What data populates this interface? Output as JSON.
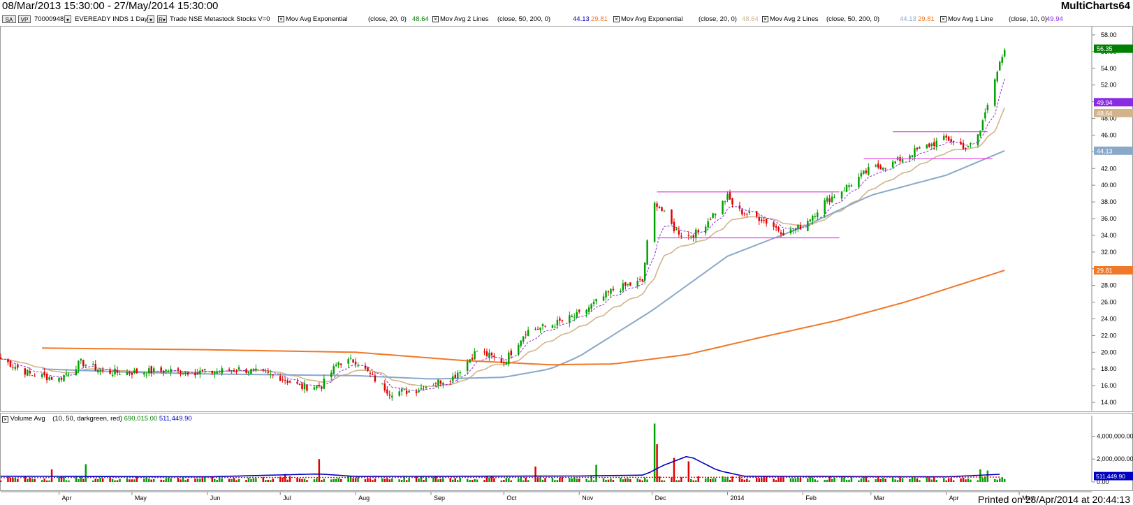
{
  "header": {
    "date_range": "08/Mar/2013 15:30:00 - 27/May/2014 15:30:00",
    "brand": "MultiCharts64"
  },
  "legend": {
    "btn_sa": "SA",
    "btn_vp": "VP",
    "symbol_id": "70000948",
    "symbol_desc": "EVEREADY INDS  1 Day",
    "source": "Trade  NSE  Metastock  Stocks  V=0",
    "ind1_name": "Mov Avg Exponential",
    "ind1_params": "(close,  20,  0)",
    "ind1_value": "48.64",
    "ind2_name": "Mov Avg 2 Lines",
    "ind2_params": "(close,  50,  200,  0)",
    "ind2_value_a": "44.13",
    "ind2_value_b": "29.81",
    "ind3_name": "Mov Avg Exponential",
    "ind3_params": "(close,  20,  0)",
    "ind3_value": "48.64",
    "ind4_name": "Mov Avg 2 Lines",
    "ind4_params": "(close,  50,  200,  0)",
    "ind4_value_a": "44.13",
    "ind4_value_b": "29.81",
    "ind5_name": "Mov Avg 1 Line",
    "ind5_params": "(close,  10,  0)",
    "ind5_value": "49.94"
  },
  "volume_legend": {
    "name": "Volume Avg",
    "params": "(10,  50,  darkgreen,  red)",
    "value_a": "690,015.00",
    "value_b": "511,449.90"
  },
  "footer": {
    "printed": "Printed on 28/Apr/2014 at 20:44:13"
  },
  "colors": {
    "up": "#00a000",
    "down": "#e00000",
    "ema20": "#d2b48c",
    "ma50": "#8aa9c9",
    "ma200": "#f07828",
    "ma10": "#8a2be2",
    "hline": "#e040e0",
    "volavg10": "#0000c0",
    "volavg50": "#ff0000"
  },
  "chart_data": [
    {
      "type": "candlestick",
      "ylim": [
        13,
        59
      ],
      "y_ticks": [
        "14.00",
        "16.00",
        "18.00",
        "20.00",
        "22.00",
        "24.00",
        "26.00",
        "28.00",
        "30.00",
        "32.00",
        "34.00",
        "36.00",
        "38.00",
        "40.00",
        "42.00",
        "44.00",
        "46.00",
        "48.00",
        "50.00",
        "52.00",
        "54.00",
        "56.00",
        "58.00"
      ],
      "x_ticks": [
        "Apr",
        "May",
        "Jun",
        "Jul",
        "Aug",
        "Sep",
        "Oct",
        "Nov",
        "Dec",
        "2014",
        "Feb",
        "Mar",
        "Apr",
        "May"
      ],
      "close_anchors": {
        "x": [
          "2013-03-08",
          "2013-03-20",
          "2013-04-01",
          "2013-04-10",
          "2013-04-20",
          "2013-05-01",
          "2013-05-15",
          "2013-06-01",
          "2013-06-15",
          "2013-07-01",
          "2013-07-10",
          "2013-07-18",
          "2013-07-25",
          "2013-08-01",
          "2013-08-08",
          "2013-08-15",
          "2013-08-25",
          "2013-09-01",
          "2013-09-10",
          "2013-09-20",
          "2013-10-01",
          "2013-10-10",
          "2013-10-20",
          "2013-11-01",
          "2013-11-15",
          "2013-11-27",
          "2013-12-01",
          "2013-12-03",
          "2013-12-10",
          "2013-12-15",
          "2013-12-20",
          "2014-01-01",
          "2014-01-05",
          "2014-01-15",
          "2014-01-25",
          "2014-02-01",
          "2014-02-10",
          "2014-02-20",
          "2014-03-01",
          "2014-03-10",
          "2014-03-20",
          "2014-04-01",
          "2014-04-10",
          "2014-04-15",
          "2014-04-18",
          "2014-04-21",
          "2014-04-25"
        ],
        "y": [
          19.2,
          17.4,
          16.8,
          18.8,
          17.6,
          17.6,
          17.8,
          17.6,
          18.0,
          17.0,
          15.8,
          16.0,
          18.8,
          19.0,
          17.0,
          15.2,
          15.4,
          16.2,
          17.0,
          20.2,
          18.8,
          22.5,
          23.2,
          24.5,
          27.5,
          28.5,
          37.6,
          37.8,
          34.8,
          33.8,
          34.4,
          38.6,
          37.0,
          36.0,
          34.2,
          35.2,
          38.0,
          40.0,
          42.0,
          42.6,
          44.2,
          45.6,
          44.4,
          46.5,
          50.0,
          53.0,
          55.8
        ]
      },
      "series": [
        {
          "name": "Mov Avg Exponential (close, 20, 0)",
          "last_value": 48.64
        },
        {
          "name": "Mov Avg 2 Lines (close, 50, 200, 0)",
          "last_value": 44.13,
          "last_value_b": 29.81
        },
        {
          "name": "Mov Avg 1 Line (close, 10, 0)",
          "last_value": 49.94
        }
      ],
      "ma50": {
        "x": [
          "2013-03-25",
          "2013-05-01",
          "2013-06-01",
          "2013-07-01",
          "2013-08-01",
          "2013-09-01",
          "2013-10-01",
          "2013-10-20",
          "2013-11-01",
          "2013-12-01",
          "2014-01-01",
          "2014-02-01",
          "2014-03-01",
          "2014-04-01",
          "2014-04-25"
        ],
        "y": [
          18.0,
          17.6,
          17.4,
          17.3,
          17.2,
          16.8,
          17.0,
          18.0,
          19.5,
          25.0,
          31.5,
          35.0,
          38.8,
          41.2,
          44.13
        ]
      },
      "ma200": {
        "x": [
          "2013-03-25",
          "2013-06-01",
          "2013-08-01",
          "2013-09-15",
          "2013-10-20",
          "2013-11-15",
          "2013-12-15",
          "2014-01-15",
          "2014-02-15",
          "2014-03-15",
          "2014-04-25"
        ],
        "y": [
          20.5,
          20.3,
          20.0,
          19.0,
          18.5,
          18.6,
          19.7,
          21.8,
          23.8,
          26.0,
          29.81
        ]
      },
      "hlines": [
        {
          "x": [
            "2013-12-03",
            "2014-02-16"
          ],
          "y": 39.2
        },
        {
          "x": [
            "2013-12-03",
            "2014-02-16"
          ],
          "y": 33.7
        },
        {
          "x": [
            "2014-03-10",
            "2014-04-18"
          ],
          "y": 46.4
        },
        {
          "x": [
            "2014-02-26",
            "2014-04-20"
          ],
          "y": 43.2
        }
      ],
      "price_labels": [
        {
          "value": "56.35",
          "color": "#008000"
        },
        {
          "value": "49.94",
          "color": "#8a2be2"
        },
        {
          "value": "48.64",
          "color": "#d2b48c"
        },
        {
          "value": "44.13",
          "color": "#8aa9c9"
        },
        {
          "value": "29.81",
          "color": "#f07828"
        }
      ]
    },
    {
      "type": "bar",
      "name": "Volume Avg",
      "ylim": [
        0,
        5800000
      ],
      "y_ticks": [
        "0.00",
        "2,000,000.00",
        "4,000,000.00"
      ],
      "baseline_volume": 420000,
      "spikes": [
        {
          "x": "2013-03-29",
          "value": 1100000
        },
        {
          "x": "2013-04-12",
          "value": 1550000
        },
        {
          "x": "2013-07-03",
          "value": 700000
        },
        {
          "x": "2013-07-17",
          "value": 2000000
        },
        {
          "x": "2013-10-14",
          "value": 1350000
        },
        {
          "x": "2013-11-08",
          "value": 1500000
        },
        {
          "x": "2013-12-02",
          "value": 5100000
        },
        {
          "x": "2013-12-03",
          "value": 3300000
        },
        {
          "x": "2013-12-10",
          "value": 2100000
        },
        {
          "x": "2013-12-16",
          "value": 1800000
        },
        {
          "x": "2014-04-15",
          "value": 1100000
        },
        {
          "x": "2014-04-18",
          "value": 1000000
        }
      ],
      "avg10": {
        "x": [
          "2013-03-08",
          "2013-06-01",
          "2013-07-17",
          "2013-08-01",
          "2013-11-01",
          "2013-11-28",
          "2013-12-05",
          "2013-12-16",
          "2013-12-28",
          "2014-01-08",
          "2014-04-01",
          "2014-04-25"
        ],
        "y": [
          500000,
          450000,
          700000,
          480000,
          520000,
          600000,
          1400000,
          2300000,
          1000000,
          500000,
          450000,
          690015
        ]
      },
      "last_label": "511,449.90"
    }
  ]
}
